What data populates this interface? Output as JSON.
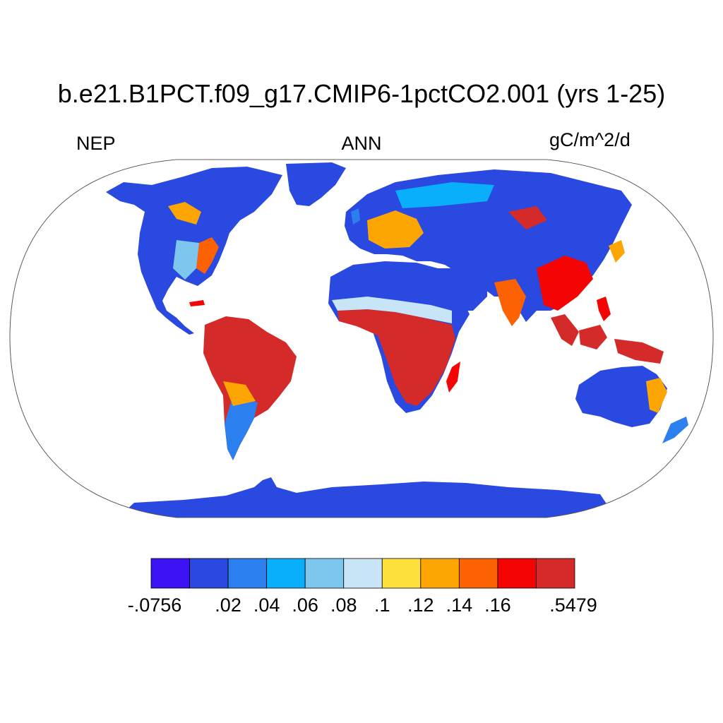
{
  "title": "b.e21.B1PCT.f09_g17.CMIP6-1pctCO2.001 (yrs 1-25)",
  "left_string": "NEP",
  "center_string": "ANN",
  "right_string": "gC/m^2/d",
  "colorbar": {
    "colors": [
      "#3d12f5",
      "#2a49e0",
      "#2c7fee",
      "#0aaffb",
      "#7dc7ef",
      "#c8e5f7",
      "#fde03c",
      "#fca503",
      "#fc6103",
      "#f50404",
      "#d52a2a"
    ],
    "labels": [
      "-.0756",
      ".02",
      ".04",
      ".06",
      ".08",
      ".1",
      ".12",
      ".14",
      ".16",
      ".5479"
    ]
  },
  "colors": {
    "ocean": "#ffffff",
    "low": "#2a49e0",
    "high": "#d52a2a",
    "outline": "#000000"
  }
}
